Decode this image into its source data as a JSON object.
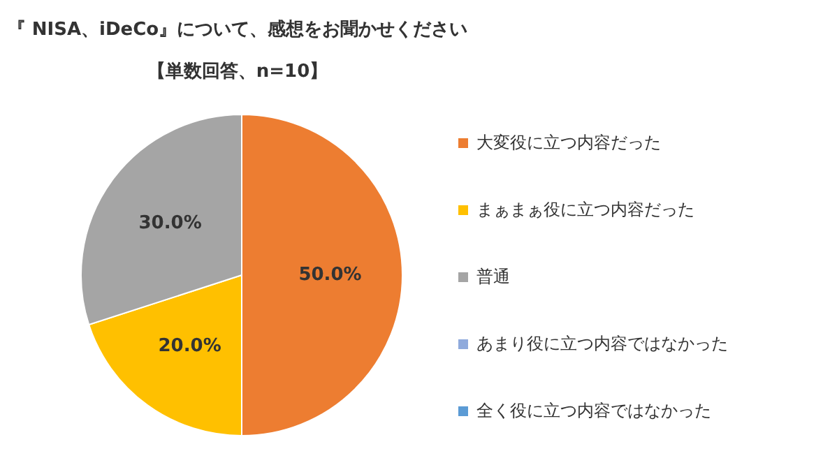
{
  "chart_data": {
    "type": "pie",
    "title": "『 NISA、iDeCo』について、感想をお聞かせください",
    "subtitle": "【単数回答、n=10】",
    "categories": [
      "大変役に立つ内容だった",
      "まぁまぁ役に立つ内容だった",
      "普通",
      "あまり役に立つ内容ではなかった",
      "全く役に立つ内容ではなかった"
    ],
    "values": [
      50,
      20,
      30,
      0,
      0
    ],
    "colors": [
      "#ed7d31",
      "#ffc000",
      "#a5a5a5",
      "#8faadc",
      "#5b9bd5"
    ],
    "value_labels": [
      "50.0%",
      "20.0%",
      "30.0%",
      null,
      null
    ],
    "legend": "right"
  }
}
